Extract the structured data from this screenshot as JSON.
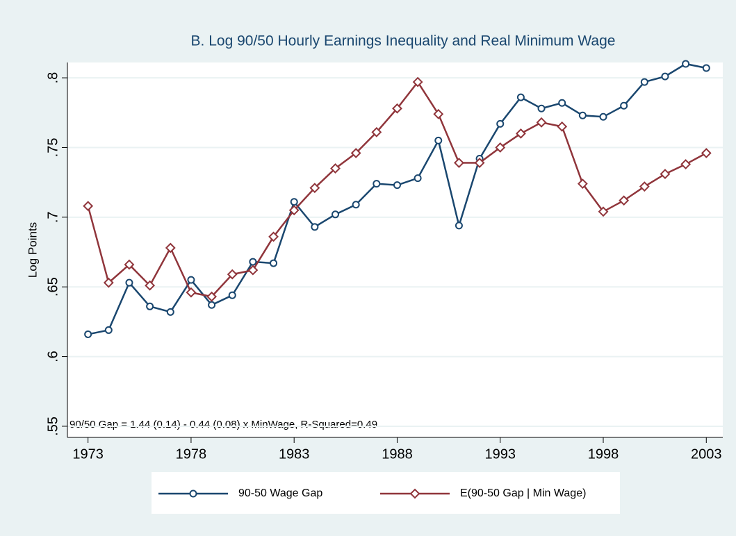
{
  "chart_data": {
    "type": "line",
    "title": "B. Log 90/50 Hourly Earnings Inequality and Real Minimum Wage",
    "y_label": "Log Points",
    "annotation": "90/50 Gap = 1.44 (0.14) - 0.44 (0.08) x MinWage, R-Squared=0.49",
    "x": [
      1973,
      1974,
      1975,
      1976,
      1977,
      1978,
      1979,
      1980,
      1981,
      1982,
      1983,
      1984,
      1985,
      1986,
      1987,
      1988,
      1989,
      1990,
      1991,
      1992,
      1993,
      1994,
      1995,
      1996,
      1997,
      1998,
      1999,
      2000,
      2001,
      2002,
      2003
    ],
    "series": [
      {
        "name": "90-50 Wage Gap",
        "color": "#1a476f",
        "marker": "circle",
        "values": [
          0.616,
          0.619,
          0.653,
          0.636,
          0.632,
          0.655,
          0.637,
          0.644,
          0.668,
          0.667,
          0.711,
          0.693,
          0.702,
          0.709,
          0.724,
          0.723,
          0.728,
          0.755,
          0.694,
          0.742,
          0.767,
          0.786,
          0.778,
          0.782,
          0.773,
          0.772,
          0.78,
          0.797,
          0.801,
          0.81,
          0.807
        ]
      },
      {
        "name": "E(90-50 Gap | Min Wage)",
        "color": "#90353b",
        "marker": "diamond",
        "values": [
          0.708,
          0.653,
          0.666,
          0.651,
          0.678,
          0.646,
          0.643,
          0.659,
          0.662,
          0.686,
          0.705,
          0.721,
          0.735,
          0.746,
          0.761,
          0.778,
          0.797,
          0.774,
          0.739,
          0.739,
          0.75,
          0.76,
          0.768,
          0.765,
          0.724,
          0.704,
          0.712,
          0.722,
          0.731,
          0.738,
          0.746
        ]
      }
    ],
    "xlim": [
      1972,
      2003.8
    ],
    "xticks": [
      1973,
      1978,
      1983,
      1988,
      1993,
      1998,
      2003
    ],
    "ylim": [
      0.542,
      0.811
    ],
    "yticks": [
      {
        "value": 0.55,
        "label": ".55"
      },
      {
        "value": 0.6,
        "label": ".6"
      },
      {
        "value": 0.65,
        "label": ".65"
      },
      {
        "value": 0.7,
        "label": ".7"
      },
      {
        "value": 0.75,
        "label": ".75"
      },
      {
        "value": 0.8,
        "label": ".8"
      }
    ],
    "grid": true,
    "legend_position": "bottom"
  }
}
